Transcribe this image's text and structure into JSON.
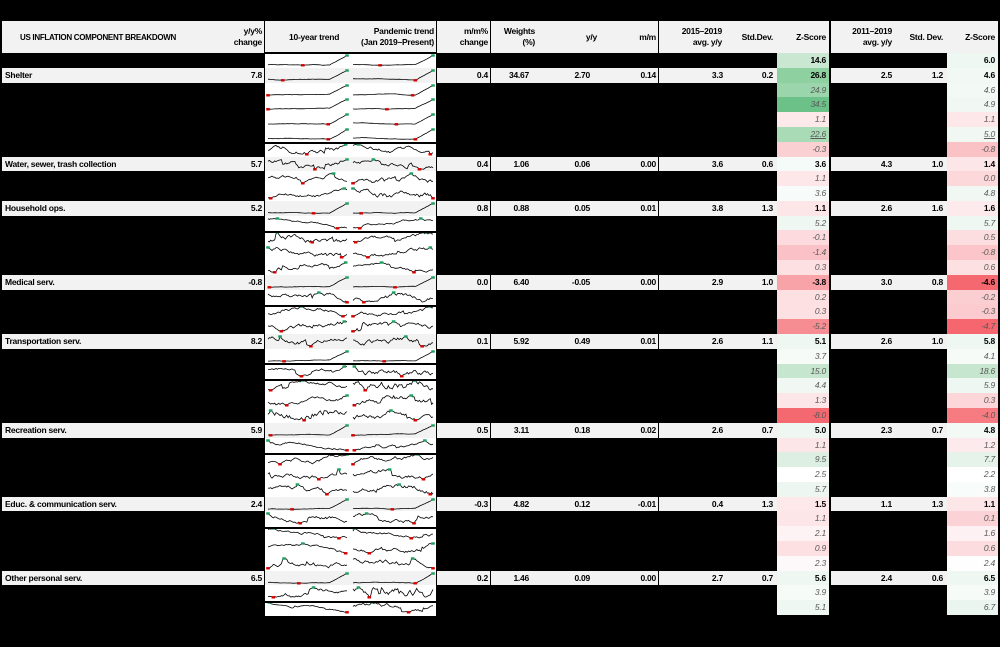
{
  "title": "US INFLATION COMPONENT BREAKDOWN",
  "headers": {
    "yy_change": [
      "y/y%",
      "change"
    ],
    "trend_10yr": "10-year trend",
    "trend_pandemic": [
      "Pandemic trend",
      "(Jan 2019–Present)"
    ],
    "mm_change": [
      "m/m%",
      "change"
    ],
    "weights": [
      "Weights",
      "(%)"
    ],
    "contrib_yy": "y/y",
    "contrib_mm": "m/m",
    "avg_2015_2019": [
      "2015–2019",
      "avg. y/y"
    ],
    "sd_2015_2019": "Std.Dev.",
    "z_2015_2019": "Z-Score",
    "avg_2011_2019": [
      "2011–2019",
      "avg. y/y"
    ],
    "sd_2011_2019": "Std. Dev.",
    "z_2011_2019": "Z-Score"
  },
  "colors": {
    "header_bg": "#f2f2f2",
    "main_row_bg": "#f2f2f2",
    "sub_text": "#595959",
    "sparkline_line": "#000000",
    "sparkline_min_marker": "#d40000",
    "sparkline_max_marker": "#1e9e61"
  },
  "rows": [
    {
      "type": "total",
      "z_2015_2019": {
        "value": "14.6",
        "color": "#c9e7d1"
      },
      "z_2011_2019": {
        "value": "6.0",
        "color": "#eef7f1"
      }
    },
    {
      "type": "main",
      "label": "Shelter",
      "yy": "7.8",
      "mm": "0.4",
      "weight": "34.67",
      "contrib_yy": "2.70",
      "contrib_mm": "0.14",
      "avg_2015_2019": "3.3",
      "sd_2015_2019": "0.2",
      "z_2015_2019": {
        "value": "26.8",
        "color": "#8fd0a1"
      },
      "avg_2011_2019": "2.5",
      "sd_2011_2019": "1.2",
      "z_2011_2019": {
        "value": "4.6",
        "color": "#f2f9f4"
      }
    },
    {
      "type": "sub",
      "z_2015_2019": {
        "value": "24.9",
        "color": "#9bd5ab"
      },
      "z_2011_2019": {
        "value": "4.6",
        "color": "#f3f9f5"
      }
    },
    {
      "type": "sub",
      "z_2015_2019": {
        "value": "34.5",
        "color": "#6cc188"
      },
      "z_2011_2019": {
        "value": "4.9",
        "color": "#f1f8f4"
      }
    },
    {
      "type": "sub",
      "z_2015_2019": {
        "value": "1.1",
        "color": "#fde9ea"
      },
      "z_2011_2019": {
        "value": "1.1",
        "color": "#fde7e9"
      }
    },
    {
      "type": "sub",
      "z_2015_2019": {
        "value": "22.6",
        "color": "#a8dbb6",
        "underline": true
      },
      "z_2011_2019": {
        "value": "5.0",
        "color": "#f1f8f4",
        "underline": true
      }
    },
    {
      "type": "sub",
      "z_2015_2019": {
        "value": "-0.3",
        "color": "#fbd0d3"
      },
      "z_2011_2019": {
        "value": "-0.8",
        "color": "#fbc2c6"
      }
    },
    {
      "type": "main",
      "label": "Water, sewer, trash collection",
      "yy": "5.7",
      "mm": "0.4",
      "weight": "1.06",
      "contrib_yy": "0.06",
      "contrib_mm": "0.00",
      "avg_2015_2019": "3.6",
      "sd_2015_2019": "0.6",
      "z_2015_2019": {
        "value": "3.6",
        "color": "#f5fbf8"
      },
      "avg_2011_2019": "4.3",
      "sd_2011_2019": "1.0",
      "z_2011_2019": {
        "value": "1.4",
        "color": "#fde6e8"
      }
    },
    {
      "type": "sub",
      "z_2015_2019": {
        "value": "1.1",
        "color": "#fde7e9"
      },
      "z_2011_2019": {
        "value": "0.0",
        "color": "#fcd8db"
      }
    },
    {
      "type": "sub",
      "z_2015_2019": {
        "value": "3.6",
        "color": "#f7fbf9"
      },
      "z_2011_2019": {
        "value": "4.8",
        "color": "#f1f8f4"
      }
    },
    {
      "type": "main",
      "label": "Household ops.",
      "yy": "5.2",
      "mm": "0.8",
      "weight": "0.88",
      "contrib_yy": "0.05",
      "contrib_mm": "0.01",
      "avg_2015_2019": "3.8",
      "sd_2015_2019": "1.3",
      "z_2015_2019": {
        "value": "1.1",
        "color": "#fde6e8"
      },
      "avg_2011_2019": "2.6",
      "sd_2011_2019": "1.6",
      "z_2011_2019": {
        "value": "1.6",
        "color": "#fdeaec"
      }
    },
    {
      "type": "sub",
      "z_2015_2019": {
        "value": "5.2",
        "color": "#eff7f2"
      },
      "z_2011_2019": {
        "value": "5.7",
        "color": "#eef7f1"
      }
    },
    {
      "type": "sub",
      "z_2015_2019": {
        "value": "-0.1",
        "color": "#fcdadd"
      },
      "z_2011_2019": {
        "value": "0.5",
        "color": "#fcdde0"
      }
    },
    {
      "type": "sub",
      "z_2015_2019": {
        "value": "-1.4",
        "color": "#fac2c6"
      },
      "z_2011_2019": {
        "value": "-0.8",
        "color": "#fbc5c9"
      }
    },
    {
      "type": "sub",
      "z_2015_2019": {
        "value": "0.3",
        "color": "#fde0e2"
      },
      "z_2011_2019": {
        "value": "0.6",
        "color": "#fce0e2"
      }
    },
    {
      "type": "main",
      "label": "Medical serv.",
      "yy": "-0.8",
      "mm": "0.0",
      "weight": "6.40",
      "contrib_yy": "-0.05",
      "contrib_mm": "0.00",
      "avg_2015_2019": "2.9",
      "sd_2015_2019": "1.0",
      "z_2015_2019": {
        "value": "-3.8",
        "color": "#f8a3a8"
      },
      "avg_2011_2019": "3.0",
      "sd_2011_2019": "0.8",
      "z_2011_2019": {
        "value": "-4.6",
        "color": "#f5686f"
      }
    },
    {
      "type": "sub",
      "z_2015_2019": {
        "value": "0.2",
        "color": "#fde0e2"
      },
      "z_2011_2019": {
        "value": "-0.2",
        "color": "#fbcfd2"
      }
    },
    {
      "type": "sub",
      "z_2015_2019": {
        "value": "0.3",
        "color": "#fde0e2"
      },
      "z_2011_2019": {
        "value": "-0.3",
        "color": "#fbcbcf"
      }
    },
    {
      "type": "sub",
      "z_2015_2019": {
        "value": "-5.2",
        "color": "#f68d93"
      },
      "z_2011_2019": {
        "value": "-4.7",
        "color": "#f5666e"
      }
    },
    {
      "type": "main",
      "label": "Transportation serv.",
      "yy": "8.2",
      "mm": "0.1",
      "weight": "5.92",
      "contrib_yy": "0.49",
      "contrib_mm": "0.01",
      "avg_2015_2019": "2.6",
      "sd_2015_2019": "1.1",
      "z_2015_2019": {
        "value": "5.1",
        "color": "#eef7f1"
      },
      "avg_2011_2019": "2.6",
      "sd_2011_2019": "1.0",
      "z_2011_2019": {
        "value": "5.8",
        "color": "#eef7f1"
      }
    },
    {
      "type": "sub",
      "z_2015_2019": {
        "value": "3.7",
        "color": "#f6fbf8"
      },
      "z_2011_2019": {
        "value": "4.1",
        "color": "#f6fbf8"
      }
    },
    {
      "type": "sub",
      "z_2015_2019": {
        "value": "15.0",
        "color": "#c6e6cf"
      },
      "z_2011_2019": {
        "value": "18.6",
        "color": "#c6e6cf"
      }
    },
    {
      "type": "sub",
      "z_2015_2019": {
        "value": "4.4",
        "color": "#f1f8f4"
      },
      "z_2011_2019": {
        "value": "5.9",
        "color": "#eef7f1"
      }
    },
    {
      "type": "sub",
      "z_2015_2019": {
        "value": "1.3",
        "color": "#fde6e8"
      },
      "z_2011_2019": {
        "value": "0.3",
        "color": "#fcd6d9"
      }
    },
    {
      "type": "sub",
      "z_2015_2019": {
        "value": "-8.0",
        "color": "#f4686f"
      },
      "z_2011_2019": {
        "value": "-4.0",
        "color": "#f67c82"
      }
    },
    {
      "type": "main",
      "label": "Recreation serv.",
      "yy": "5.9",
      "mm": "0.5",
      "weight": "3.11",
      "contrib_yy": "0.18",
      "contrib_mm": "0.02",
      "avg_2015_2019": "2.6",
      "sd_2015_2019": "0.7",
      "z_2015_2019": {
        "value": "5.0",
        "color": "#eef7f1"
      },
      "avg_2011_2019": "2.3",
      "sd_2011_2019": "0.7",
      "z_2011_2019": {
        "value": "4.8",
        "color": "#f3f9f5"
      }
    },
    {
      "type": "sub",
      "z_2015_2019": {
        "value": "1.1",
        "color": "#fde6e8"
      },
      "z_2011_2019": {
        "value": "1.2",
        "color": "#fdeaec"
      }
    },
    {
      "type": "sub",
      "z_2015_2019": {
        "value": "9.5",
        "color": "#dcefe2"
      },
      "z_2011_2019": {
        "value": "7.7",
        "color": "#e6f3ea"
      }
    },
    {
      "type": "sub",
      "z_2015_2019": {
        "value": "2.5",
        "color": "#ffffff"
      },
      "z_2011_2019": {
        "value": "2.2",
        "color": "#ffffff"
      }
    },
    {
      "type": "sub",
      "z_2015_2019": {
        "value": "5.7",
        "color": "#edf6f0"
      },
      "z_2011_2019": {
        "value": "3.8",
        "color": "#f8fcfa"
      }
    },
    {
      "type": "main",
      "label": "Educ. & communication serv.",
      "yy": "2.4",
      "mm": "-0.3",
      "weight": "4.82",
      "contrib_yy": "0.12",
      "contrib_mm": "-0.01",
      "avg_2015_2019": "0.4",
      "sd_2015_2019": "1.3",
      "z_2015_2019": {
        "value": "1.5",
        "color": "#fde8ea"
      },
      "avg_2011_2019": "1.1",
      "sd_2011_2019": "1.3",
      "z_2011_2019": {
        "value": "1.1",
        "color": "#fde6e8"
      }
    },
    {
      "type": "sub",
      "z_2015_2019": {
        "value": "1.1",
        "color": "#fde6e8"
      },
      "z_2011_2019": {
        "value": "0.1",
        "color": "#fbd3d6"
      }
    },
    {
      "type": "sub",
      "z_2015_2019": {
        "value": "2.1",
        "color": "#fdf3f5"
      },
      "z_2011_2019": {
        "value": "1.6",
        "color": "#fdf1f3"
      }
    },
    {
      "type": "sub",
      "z_2015_2019": {
        "value": "0.9",
        "color": "#fde0e2"
      },
      "z_2011_2019": {
        "value": "0.6",
        "color": "#fcdcdf"
      }
    },
    {
      "type": "sub",
      "z_2015_2019": {
        "value": "2.3",
        "color": "#fdf8f9"
      },
      "z_2011_2019": {
        "value": "2.4",
        "color": "#fefefe"
      }
    },
    {
      "type": "main",
      "label": "Other personal serv.",
      "yy": "6.5",
      "mm": "0.2",
      "weight": "1.46",
      "contrib_yy": "0.09",
      "contrib_mm": "0.00",
      "avg_2015_2019": "2.7",
      "sd_2015_2019": "0.7",
      "z_2015_2019": {
        "value": "5.6",
        "color": "#eef7f1"
      },
      "avg_2011_2019": "2.4",
      "sd_2011_2019": "0.6",
      "z_2011_2019": {
        "value": "6.5",
        "color": "#eef7f1"
      }
    },
    {
      "type": "sub",
      "z_2015_2019": {
        "value": "3.9",
        "color": "#f6fbf8"
      },
      "z_2011_2019": {
        "value": "3.9",
        "color": "#f6fbf8"
      }
    },
    {
      "type": "sub",
      "z_2015_2019": {
        "value": "5.1",
        "color": "#eef7f1"
      },
      "z_2011_2019": {
        "value": "6.7",
        "color": "#ebf5ef"
      }
    }
  ]
}
